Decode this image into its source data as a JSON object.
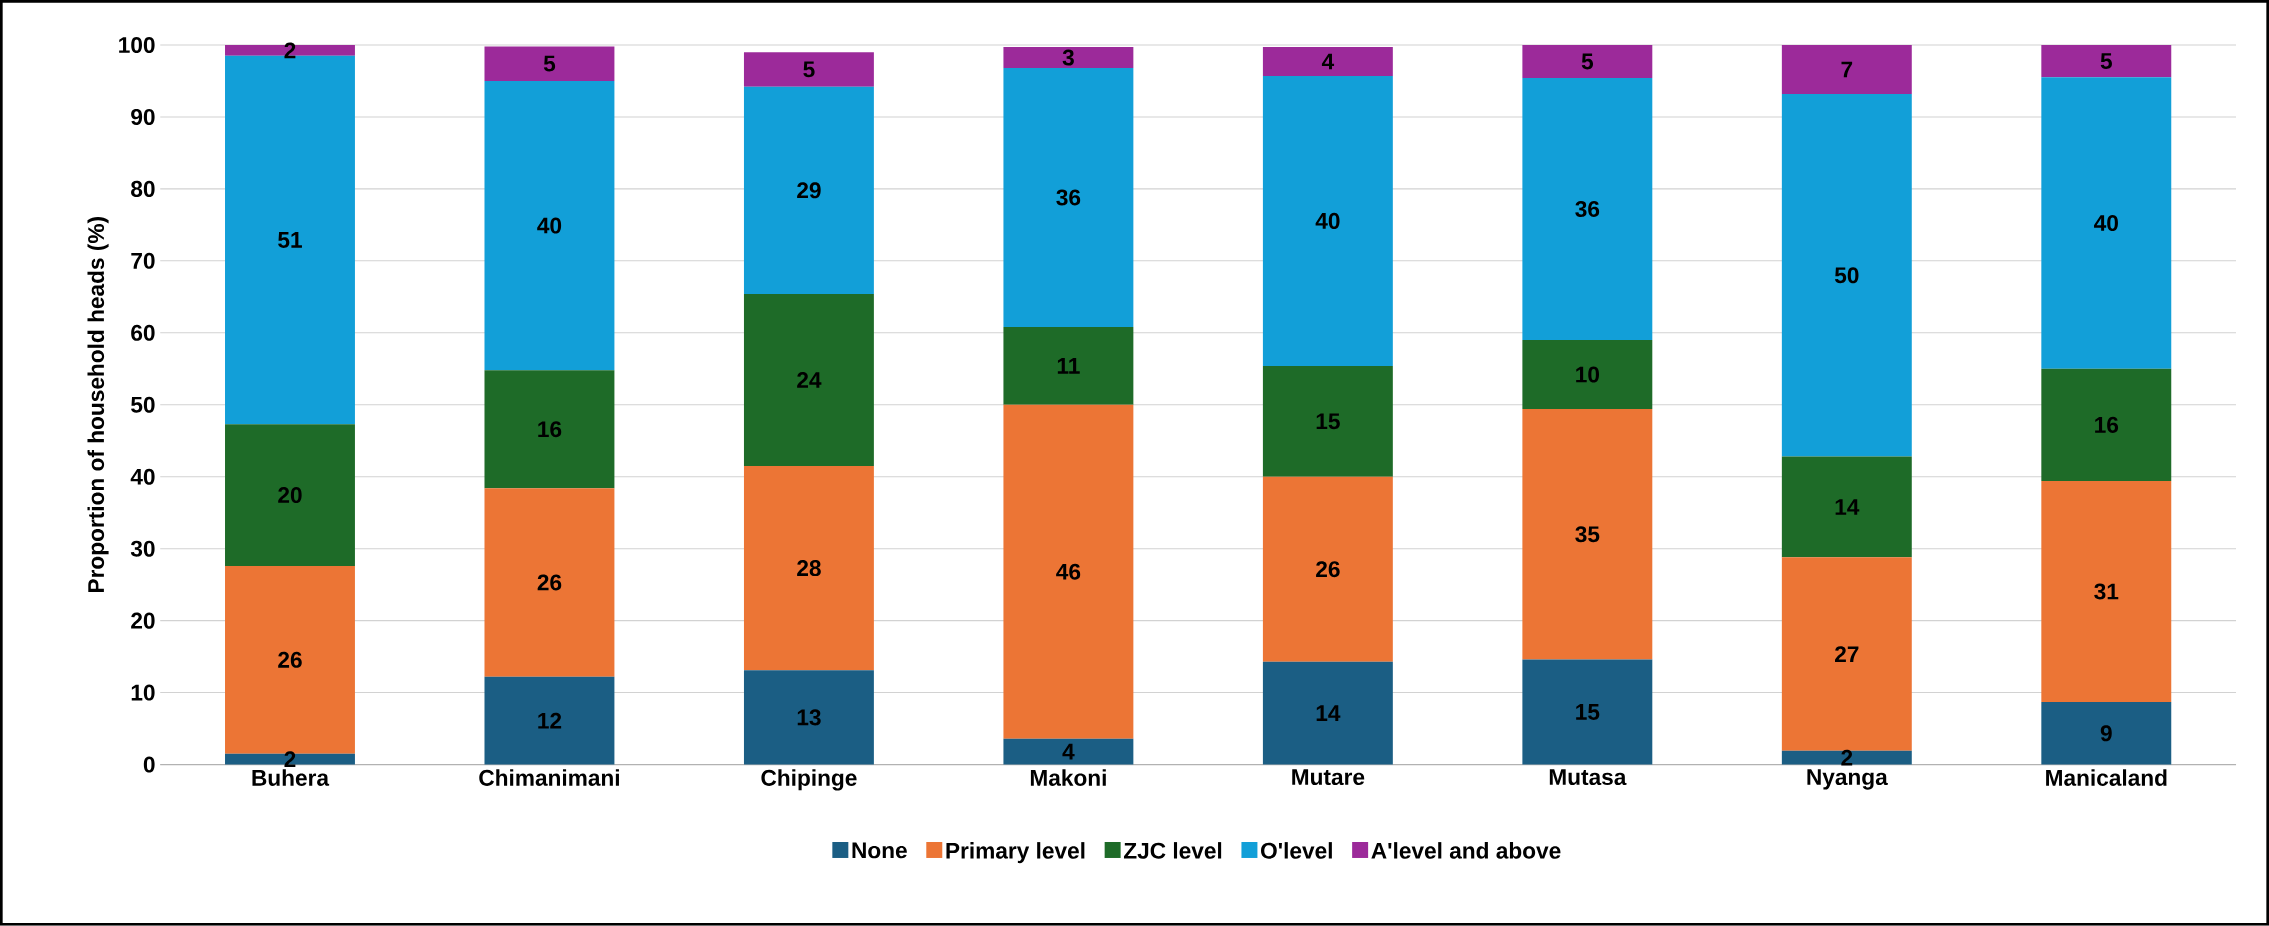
{
  "chart_data": {
    "type": "bar",
    "stacked": true,
    "ylabel": "Proportion of household heads (%)",
    "categories": [
      "Buhera",
      "Chimanimani",
      "Chipinge",
      "Makoni",
      "Mutare",
      "Mutasa",
      "Nyanga",
      "Manicaland"
    ],
    "series": [
      {
        "name": "None",
        "color": "#1b5e84",
        "values": [
          1.5,
          12.2,
          13.1,
          3.6,
          14.3,
          14.6,
          1.9,
          8.7
        ],
        "value_labels": [
          "2",
          "12",
          "13",
          "4",
          "14",
          "15",
          "2",
          "9"
        ]
      },
      {
        "name": "Primary level",
        "color": "#ec7535",
        "values": [
          26.1,
          26.2,
          28.4,
          46.4,
          25.7,
          34.8,
          26.9,
          30.7
        ],
        "value_labels": [
          "26",
          "26",
          "28",
          "46",
          "26",
          "35",
          "27",
          "31"
        ]
      },
      {
        "name": "ZJC level",
        "color": "#1e6b28",
        "values": [
          19.7,
          16.4,
          23.9,
          10.8,
          15.4,
          9.6,
          14.0,
          15.6
        ],
        "value_labels": [
          "20",
          "16",
          "24",
          "11",
          "15",
          "10",
          "14",
          "16"
        ]
      },
      {
        "name": "O'level",
        "color": "#129fd8",
        "values": [
          51.2,
          40.2,
          28.8,
          36.0,
          40.3,
          36.4,
          50.4,
          40.5
        ],
        "value_labels": [
          "51",
          "40",
          "29",
          "36",
          "40",
          "36",
          "50",
          "40"
        ]
      },
      {
        "name": "A'level and above",
        "color": "#9c2a9a",
        "values": [
          1.5,
          4.8,
          4.8,
          2.9,
          4.0,
          4.6,
          6.8,
          4.5
        ],
        "value_labels": [
          "2",
          "5",
          "5",
          "3",
          "4",
          "5",
          "7",
          "5"
        ]
      }
    ],
    "ylim": [
      0,
      100
    ],
    "yticks": [
      0,
      10,
      20,
      30,
      40,
      50,
      60,
      70,
      80,
      90,
      100
    ],
    "grid": "y",
    "legend": "bottom"
  }
}
